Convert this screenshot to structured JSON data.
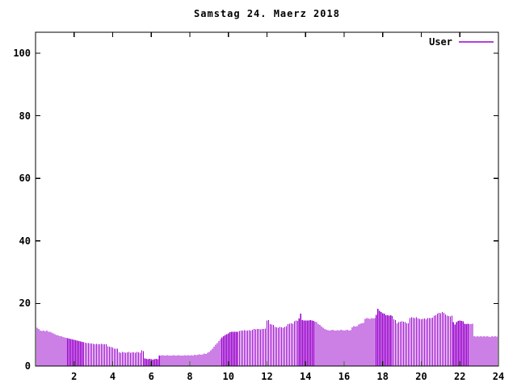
{
  "title": "Samstag 24. Maerz 2018",
  "legend": {
    "label": "User",
    "color": "#9a00cc"
  },
  "colors": {
    "background": "#ffffff",
    "border": "#000000",
    "text": "#000000",
    "series_user": "#9a00cc"
  },
  "chart_data": {
    "type": "bar",
    "title": "Samstag 24. Maerz 2018",
    "xlabel": "",
    "ylabel": "",
    "x_unit": "hour of day",
    "sample_interval_minutes": 5,
    "xlim": [
      0,
      24
    ],
    "ylim": [
      0,
      100
    ],
    "xticks": [
      2,
      4,
      6,
      8,
      10,
      12,
      14,
      16,
      18,
      20,
      22,
      24
    ],
    "yticks": [
      0,
      20,
      40,
      60,
      80,
      100
    ],
    "grid": false,
    "legend_position": "top-right-inside",
    "legend_entries": [
      {
        "name": "User",
        "color": "#9a00cc"
      }
    ],
    "series": [
      {
        "name": "User",
        "values": [
          12.3,
          11.9,
          11.3,
          11.2,
          11.4,
          11.1,
          11.3,
          11.0,
          10.9,
          10.7,
          10.5,
          10.2,
          9.9,
          9.8,
          9.6,
          9.5,
          9.3,
          9.2,
          9.0,
          8.9,
          8.8,
          8.6,
          8.5,
          8.4,
          8.2,
          8.1,
          8.0,
          7.9,
          7.7,
          7.6,
          7.5,
          7.4,
          7.3,
          7.2,
          7.2,
          7.1,
          7.0,
          7.1,
          6.9,
          7.0,
          7.1,
          7.0,
          6.9,
          7.0,
          6.3,
          6.2,
          6.1,
          5.9,
          5.6,
          5.5,
          5.5,
          4.4,
          4.3,
          4.5,
          4.4,
          4.2,
          4.4,
          4.5,
          4.3,
          4.4,
          4.4,
          4.3,
          4.5,
          4.4,
          4.3,
          5.0,
          4.8,
          2.4,
          2.3,
          2.2,
          2.3,
          2.2,
          2.1,
          2.2,
          2.3,
          2.2,
          3.3,
          3.4,
          3.5,
          3.4,
          3.3,
          3.5,
          3.4,
          3.3,
          3.4,
          3.5,
          3.3,
          3.4,
          3.5,
          3.4,
          3.3,
          3.4,
          3.5,
          3.4,
          3.5,
          3.4,
          3.5,
          3.4,
          3.6,
          3.5,
          3.6,
          3.7,
          3.6,
          3.8,
          4.0,
          3.9,
          4.2,
          4.5,
          5.0,
          5.6,
          6.2,
          6.8,
          7.3,
          8.0,
          8.6,
          9.1,
          9.5,
          9.9,
          10.2,
          10.4,
          10.8,
          10.9,
          11.0,
          10.9,
          11.0,
          10.9,
          11.2,
          11.4,
          11.3,
          11.5,
          11.4,
          11.3,
          11.5,
          11.4,
          11.6,
          11.8,
          11.7,
          11.9,
          11.8,
          11.7,
          11.9,
          11.8,
          12.0,
          14.5,
          14.7,
          13.4,
          13.3,
          13.1,
          12.5,
          12.4,
          12.3,
          12.5,
          12.4,
          12.3,
          12.5,
          12.8,
          13.4,
          13.5,
          13.6,
          13.5,
          14.3,
          14.5,
          14.4,
          15.2,
          16.7,
          14.7,
          14.6,
          14.5,
          14.6,
          14.5,
          14.7,
          14.6,
          14.4,
          14.2,
          14.0,
          13.4,
          13.1,
          12.6,
          12.3,
          11.8,
          11.6,
          11.5,
          11.4,
          11.5,
          11.6,
          11.4,
          11.3,
          11.5,
          11.4,
          11.6,
          11.5,
          11.4,
          11.5,
          11.6,
          11.4,
          11.5,
          12.4,
          12.7,
          12.6,
          12.8,
          13.3,
          13.5,
          13.6,
          13.8,
          15.1,
          15.3,
          15.2,
          15.1,
          15.3,
          15.2,
          15.4,
          16.4,
          18.3,
          17.6,
          17.3,
          16.9,
          16.8,
          16.3,
          16.2,
          16.1,
          16.2,
          16.0,
          14.9,
          14.7,
          13.7,
          14.1,
          14.2,
          14.3,
          14.2,
          14.1,
          13.7,
          13.6,
          15.4,
          15.6,
          15.5,
          15.4,
          15.6,
          15.2,
          15.1,
          15.0,
          15.1,
          15.2,
          15.0,
          15.3,
          15.4,
          15.3,
          15.5,
          16.1,
          16.3,
          16.8,
          17.0,
          16.9,
          17.3,
          17.0,
          16.5,
          16.1,
          16.0,
          15.9,
          16.1,
          14.0,
          13.3,
          14.0,
          14.4,
          14.5,
          14.4,
          14.3,
          13.5,
          13.4,
          13.5,
          13.4,
          13.4,
          13.5,
          9.6,
          9.4,
          9.5,
          9.4,
          9.5,
          9.4,
          9.5,
          9.4,
          9.5,
          9.4,
          9.3,
          9.5,
          9.4,
          9.5,
          9.4,
          9.3
        ]
      }
    ]
  }
}
